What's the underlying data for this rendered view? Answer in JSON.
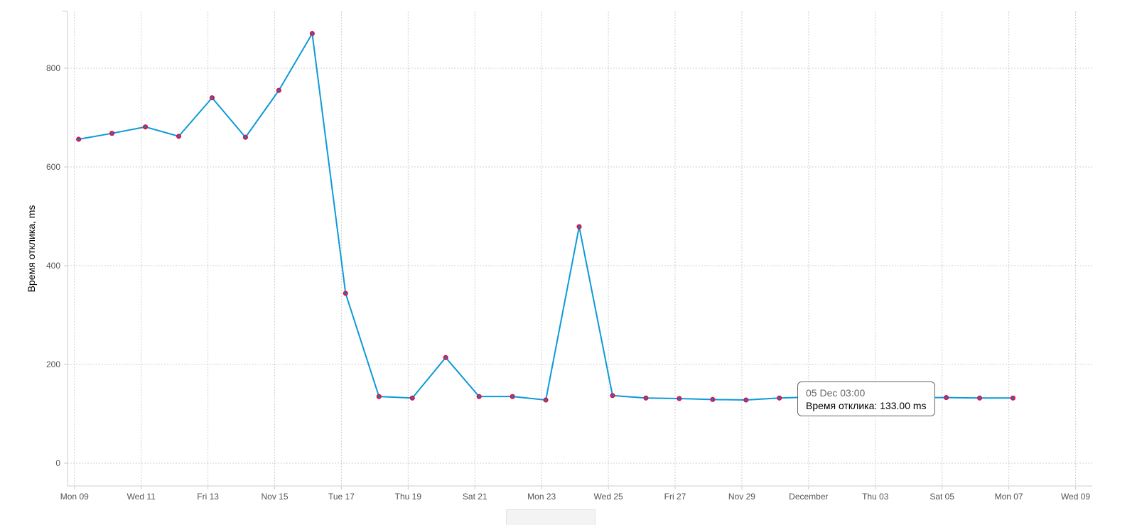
{
  "chart_data": {
    "type": "line",
    "title": "",
    "xlabel": "",
    "ylabel": "Время отклика, ms",
    "x": [
      "2015-11-09T03:00",
      "2015-11-10T03:00",
      "2015-11-11T03:00",
      "2015-11-12T03:00",
      "2015-11-13T03:00",
      "2015-11-14T03:00",
      "2015-11-15T03:00",
      "2015-11-16T03:00",
      "2015-11-17T03:00",
      "2015-11-18T03:00",
      "2015-11-19T03:00",
      "2015-11-20T03:00",
      "2015-11-21T03:00",
      "2015-11-22T03:00",
      "2015-11-23T03:00",
      "2015-11-24T03:00",
      "2015-11-25T03:00",
      "2015-11-26T03:00",
      "2015-11-27T03:00",
      "2015-11-28T03:00",
      "2015-11-29T03:00",
      "2015-11-30T03:00",
      "2015-12-01T03:00",
      "2015-12-02T03:00",
      "2015-12-03T03:00",
      "2015-12-04T03:00",
      "2015-12-05T03:00",
      "2015-12-06T03:00",
      "2015-12-07T03:00"
    ],
    "series": [
      {
        "values": [
          656,
          668,
          681,
          662,
          740,
          660,
          755,
          870,
          344,
          135,
          132,
          214,
          135,
          135,
          128,
          479,
          137,
          132,
          131,
          129,
          128,
          132,
          134,
          133,
          133,
          133,
          133,
          132,
          132
        ]
      }
    ],
    "ylim": [
      -46,
      915
    ],
    "xlim": [
      "2015-11-08T19:00",
      "2015-12-09T12:00"
    ],
    "yticks": [
      0,
      200,
      400,
      600,
      800
    ],
    "xticks": [
      {
        "date": "2015-11-09",
        "label": "Mon 09"
      },
      {
        "date": "2015-11-11",
        "label": "Wed 11"
      },
      {
        "date": "2015-11-13",
        "label": "Fri 13"
      },
      {
        "date": "2015-11-15",
        "label": "Nov 15"
      },
      {
        "date": "2015-11-17",
        "label": "Tue 17"
      },
      {
        "date": "2015-11-19",
        "label": "Thu 19"
      },
      {
        "date": "2015-11-21",
        "label": "Sat 21"
      },
      {
        "date": "2015-11-23",
        "label": "Mon 23"
      },
      {
        "date": "2015-11-25",
        "label": "Wed 25"
      },
      {
        "date": "2015-11-27",
        "label": "Fri 27"
      },
      {
        "date": "2015-11-29",
        "label": "Nov 29"
      },
      {
        "date": "2015-12-01",
        "label": "December"
      },
      {
        "date": "2015-12-03",
        "label": "Thu 03"
      },
      {
        "date": "2015-12-05",
        "label": "Sat 05"
      },
      {
        "date": "2015-12-07",
        "label": "Mon 07"
      },
      {
        "date": "2015-12-09",
        "label": "Wed 09"
      }
    ],
    "grid": true,
    "legend": "none",
    "colors": {
      "line": "#0d9ad8",
      "marker_fill": "#1f77b4",
      "marker_stroke": "#ff0033",
      "grid": "#d0d0d0"
    }
  },
  "tooltip": {
    "title": "05 Dec 03:00",
    "body": "Время отклика: 133.00 ms"
  }
}
